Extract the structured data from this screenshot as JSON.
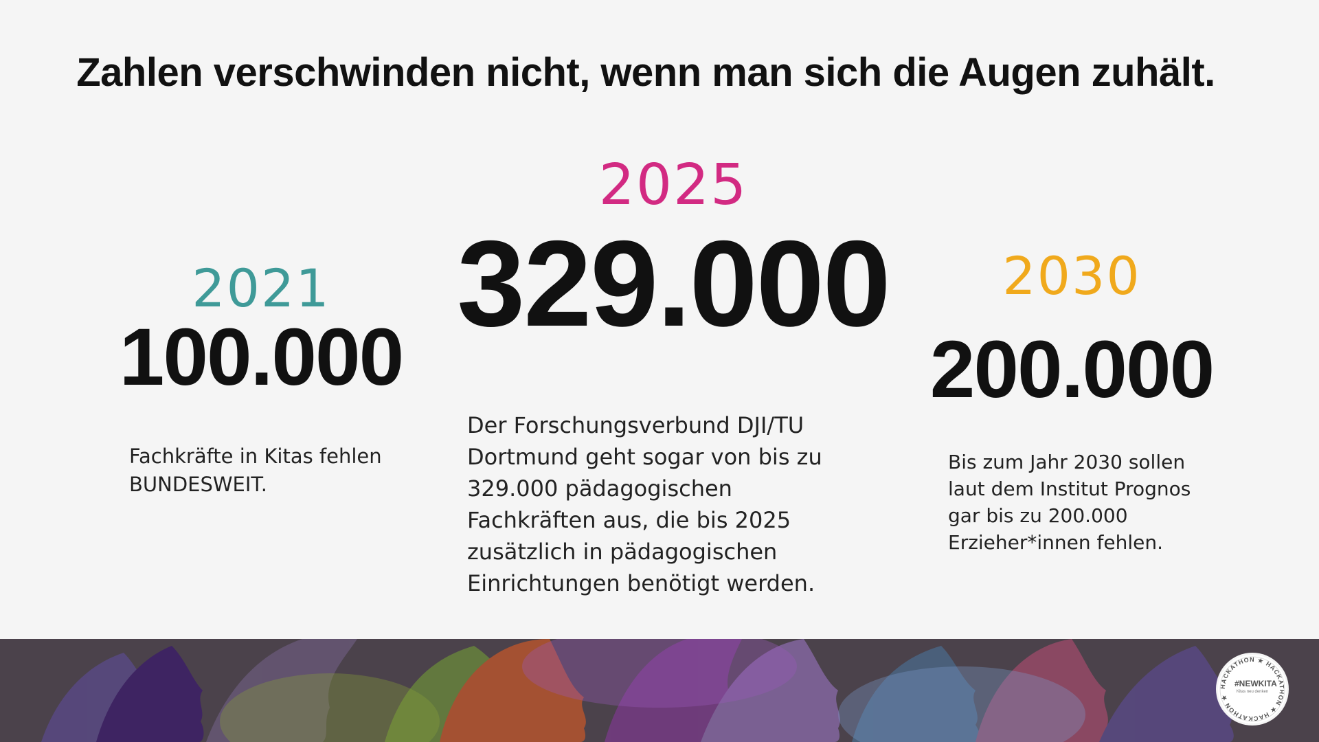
{
  "headline": "Zahlen verschwinden nicht, wenn man sich die Augen zuhält.",
  "stats": {
    "y2021": {
      "year": "2021",
      "number": "100.000",
      "description": "Fachkräfte in Kitas fehlen BUNDESWEIT.",
      "color": "#3f9a98"
    },
    "y2025": {
      "year": "2025",
      "number": "329.000",
      "description": "Der Forschungsverbund DJI/TU Dortmund geht sogar von bis zu 329.000 pädagogischen Fachkräften aus, die bis 2025 zusätzlich in pädagogischen Einrichtungen benötigt werden.",
      "color": "#d22a82"
    },
    "y2030": {
      "year": "2030",
      "number": "200.000",
      "description": "Bis zum Jahr 2030 sollen laut dem Institut Prognos gar bis zu 200.000 Erzieher*innen fehlen.",
      "color": "#f0a91c"
    }
  },
  "logo": {
    "ring_text": "HACKATHON ★ HACKATHON ★ HACKATHON ★",
    "mark": "#NEWKITA",
    "subtitle": "Kitas neu denken"
  },
  "banner": {
    "colors": [
      "#5a4a8a",
      "#3a1a6a",
      "#7a4a8a",
      "#c2562a",
      "#6a8a3a",
      "#8a6aaa",
      "#4a6a8a",
      "#a04a6a"
    ]
  }
}
